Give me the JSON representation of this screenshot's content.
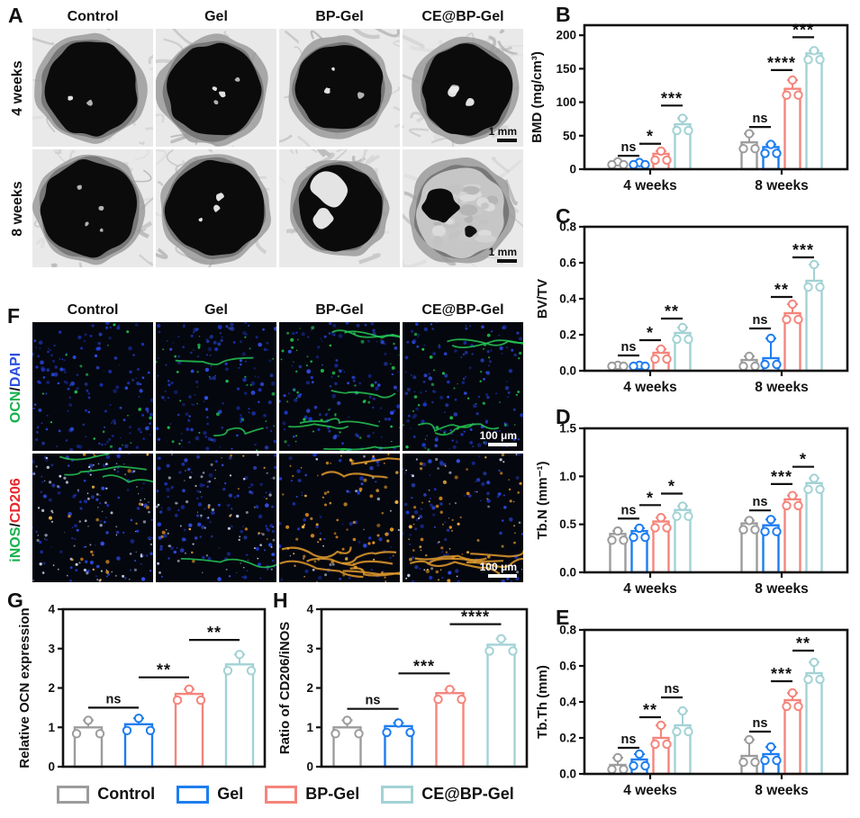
{
  "panels": {
    "a": "A",
    "b": "B",
    "c": "C",
    "d": "D",
    "e": "E",
    "f": "F",
    "g": "G",
    "h": "H"
  },
  "groups": [
    "Control",
    "Gel",
    "BP-Gel",
    "CE@BP-Gel"
  ],
  "panel_a": {
    "columns": [
      "Control",
      "Gel",
      "BP-Gel",
      "CE@BP-Gel"
    ],
    "row_labels": [
      "4 weeks",
      "8 weeks"
    ],
    "scale_bar": "1 mm"
  },
  "panel_f": {
    "columns": [
      "Control",
      "Gel",
      "BP-Gel",
      "CE@BP-Gel"
    ],
    "row_labels": [
      {
        "name": "ocn-dapi",
        "parts": [
          [
            "OCN",
            "#15b14c"
          ],
          [
            "/",
            "#111111"
          ],
          [
            "DAPI",
            "#2b4fe0"
          ]
        ]
      },
      {
        "name": "inos-cd206",
        "parts": [
          [
            "iNOS",
            "#15b14c"
          ],
          [
            "/",
            "#111111"
          ],
          [
            "CD206",
            "#e8262a"
          ]
        ]
      }
    ],
    "scale_bar": "100 μm"
  },
  "legend": {
    "items": [
      {
        "label": "Control",
        "color": "#9C9C9C"
      },
      {
        "label": "Gel",
        "color": "#1E7DF0"
      },
      {
        "label": "BP-Gel",
        "color": "#F5857C"
      },
      {
        "label": "CE@BP-Gel",
        "color": "#A3D2D5"
      }
    ]
  },
  "chart_data": [
    {
      "id": "B",
      "type": "bar",
      "title": "",
      "ylabel": "BMD (mg/cm³)",
      "xlabel": "",
      "ylim": [
        0,
        215
      ],
      "yticks": [
        0,
        50,
        100,
        150,
        200
      ],
      "ydecimals": 0,
      "grid": false,
      "categories": [
        "4 weeks",
        "8 weeks"
      ],
      "show_xticklabels": true,
      "series": [
        {
          "name": "Control",
          "values": [
            8,
            40
          ],
          "errors": [
            3,
            13
          ]
        },
        {
          "name": "Gel",
          "values": [
            8,
            33
          ],
          "errors": [
            2,
            4
          ]
        },
        {
          "name": "BP-Gel",
          "values": [
            23,
            120
          ],
          "errors": [
            4,
            13
          ]
        },
        {
          "name": "CE@BP-Gel",
          "values": [
            67,
            173
          ],
          "errors": [
            9,
            4
          ]
        }
      ],
      "significance": [
        {
          "group": 0,
          "pair": [
            0,
            1
          ],
          "label": "ns",
          "y": 20
        },
        {
          "group": 0,
          "pair": [
            1,
            2
          ],
          "label": "*",
          "y": 38
        },
        {
          "group": 0,
          "pair": [
            2,
            3
          ],
          "label": "***",
          "y": 95
        },
        {
          "group": 1,
          "pair": [
            0,
            1
          ],
          "label": "ns",
          "y": 63
        },
        {
          "group": 1,
          "pair": [
            1,
            2
          ],
          "label": "****",
          "y": 148
        },
        {
          "group": 1,
          "pair": [
            2,
            3
          ],
          "label": "***",
          "y": 197
        }
      ]
    },
    {
      "id": "C",
      "type": "bar",
      "title": "",
      "ylabel": "BV/TV",
      "xlabel": "",
      "ylim": [
        0,
        0.8
      ],
      "yticks": [
        0,
        0.2,
        0.4,
        0.6,
        0.8
      ],
      "ydecimals": 1,
      "grid": false,
      "categories": [
        "4 weeks",
        "8 weeks"
      ],
      "show_xticklabels": true,
      "series": [
        {
          "name": "Control",
          "values": [
            0.02,
            0.06
          ],
          "errors": [
            0.01,
            0.02
          ]
        },
        {
          "name": "Gel",
          "values": [
            0.02,
            0.07
          ],
          "errors": [
            0.01,
            0.11
          ]
        },
        {
          "name": "BP-Gel",
          "values": [
            0.1,
            0.32
          ],
          "errors": [
            0.02,
            0.05
          ]
        },
        {
          "name": "CE@BP-Gel",
          "values": [
            0.21,
            0.5
          ],
          "errors": [
            0.03,
            0.09
          ]
        }
      ],
      "significance": [
        {
          "group": 0,
          "pair": [
            0,
            1
          ],
          "label": "ns",
          "y": 0.085
        },
        {
          "group": 0,
          "pair": [
            1,
            2
          ],
          "label": "*",
          "y": 0.17
        },
        {
          "group": 0,
          "pair": [
            2,
            3
          ],
          "label": "**",
          "y": 0.29
        },
        {
          "group": 1,
          "pair": [
            0,
            1
          ],
          "label": "ns",
          "y": 0.235
        },
        {
          "group": 1,
          "pair": [
            1,
            2
          ],
          "label": "**",
          "y": 0.41
        },
        {
          "group": 1,
          "pair": [
            2,
            3
          ],
          "label": "***",
          "y": 0.63
        }
      ]
    },
    {
      "id": "D",
      "type": "bar",
      "title": "",
      "ylabel": "Tb.N (mm⁻¹)",
      "xlabel": "",
      "ylim": [
        0,
        1.5
      ],
      "yticks": [
        0,
        0.5,
        1.0,
        1.5
      ],
      "ydecimals": 1,
      "grid": false,
      "categories": [
        "4 weeks",
        "8 weeks"
      ],
      "show_xticklabels": true,
      "series": [
        {
          "name": "Control",
          "values": [
            0.4,
            0.51
          ],
          "errors": [
            0.03,
            0.03
          ]
        },
        {
          "name": "Gel",
          "values": [
            0.43,
            0.49
          ],
          "errors": [
            0.03,
            0.06
          ]
        },
        {
          "name": "BP-Gel",
          "values": [
            0.53,
            0.76
          ],
          "errors": [
            0.04,
            0.04
          ]
        },
        {
          "name": "CE@BP-Gel",
          "values": [
            0.65,
            0.93
          ],
          "errors": [
            0.04,
            0.05
          ]
        }
      ],
      "significance": [
        {
          "group": 0,
          "pair": [
            0,
            1
          ],
          "label": "ns",
          "y": 0.56
        },
        {
          "group": 0,
          "pair": [
            1,
            2
          ],
          "label": "*",
          "y": 0.7
        },
        {
          "group": 0,
          "pair": [
            2,
            3
          ],
          "label": "*",
          "y": 0.82
        },
        {
          "group": 1,
          "pair": [
            0,
            1
          ],
          "label": "ns",
          "y": 0.645
        },
        {
          "group": 1,
          "pair": [
            1,
            2
          ],
          "label": "***",
          "y": 0.92
        },
        {
          "group": 1,
          "pair": [
            2,
            3
          ],
          "label": "*",
          "y": 1.1
        }
      ]
    },
    {
      "id": "E",
      "type": "bar",
      "title": "",
      "ylabel": "Tb.Th (mm)",
      "xlabel": "",
      "ylim": [
        0,
        0.8
      ],
      "yticks": [
        0,
        0.2,
        0.4,
        0.6,
        0.8
      ],
      "ydecimals": 1,
      "grid": false,
      "categories": [
        "4 weeks",
        "8 weeks"
      ],
      "show_xticklabels": true,
      "series": [
        {
          "name": "Control",
          "values": [
            0.05,
            0.1
          ],
          "errors": [
            0.04,
            0.09
          ]
        },
        {
          "name": "Gel",
          "values": [
            0.08,
            0.11
          ],
          "errors": [
            0.03,
            0.04
          ]
        },
        {
          "name": "BP-Gel",
          "values": [
            0.2,
            0.41
          ],
          "errors": [
            0.07,
            0.04
          ]
        },
        {
          "name": "CE@BP-Gel",
          "values": [
            0.27,
            0.56
          ],
          "errors": [
            0.08,
            0.06
          ]
        }
      ],
      "significance": [
        {
          "group": 0,
          "pair": [
            0,
            1
          ],
          "label": "ns",
          "y": 0.145
        },
        {
          "group": 0,
          "pair": [
            1,
            2
          ],
          "label": "**",
          "y": 0.315
        },
        {
          "group": 0,
          "pair": [
            2,
            3
          ],
          "label": "ns",
          "y": 0.425
        },
        {
          "group": 1,
          "pair": [
            0,
            1
          ],
          "label": "ns",
          "y": 0.235
        },
        {
          "group": 1,
          "pair": [
            1,
            2
          ],
          "label": "***",
          "y": 0.515
        },
        {
          "group": 1,
          "pair": [
            2,
            3
          ],
          "label": "**",
          "y": 0.685
        }
      ]
    },
    {
      "id": "G",
      "type": "bar",
      "title": "",
      "ylabel": "Relative OCN expression",
      "xlabel": "",
      "ylim": [
        0,
        4
      ],
      "yticks": [
        0,
        1,
        2,
        3,
        4
      ],
      "ydecimals": 0,
      "grid": false,
      "categories": [
        "Control",
        "Gel",
        "BP-Gel",
        "CE@BP-Gel"
      ],
      "show_xticklabels": false,
      "values": [
        1.0,
        1.08,
        1.85,
        2.6
      ],
      "errors": [
        0.18,
        0.15,
        0.12,
        0.25
      ],
      "significance": [
        {
          "group": 0,
          "pair": [
            0,
            1
          ],
          "label": "ns",
          "y": 1.5
        },
        {
          "group": 0,
          "pair": [
            1,
            2
          ],
          "label": "**",
          "y": 2.27
        },
        {
          "group": 0,
          "pair": [
            2,
            3
          ],
          "label": "**",
          "y": 3.22
        }
      ]
    },
    {
      "id": "H",
      "type": "bar",
      "title": "",
      "ylabel": "Ratio of CD206/iNOS",
      "xlabel": "",
      "ylim": [
        0,
        4
      ],
      "yticks": [
        0,
        1,
        2,
        3,
        4
      ],
      "ydecimals": 0,
      "grid": false,
      "categories": [
        "Control",
        "Gel",
        "BP-Gel",
        "CE@BP-Gel"
      ],
      "show_xticklabels": false,
      "values": [
        1.0,
        1.03,
        1.87,
        3.1
      ],
      "errors": [
        0.18,
        0.08,
        0.09,
        0.15
      ],
      "significance": [
        {
          "group": 0,
          "pair": [
            0,
            1
          ],
          "label": "ns",
          "y": 1.47
        },
        {
          "group": 0,
          "pair": [
            1,
            2
          ],
          "label": "***",
          "y": 2.37
        },
        {
          "group": 0,
          "pair": [
            2,
            3
          ],
          "label": "****",
          "y": 3.62
        }
      ]
    }
  ]
}
